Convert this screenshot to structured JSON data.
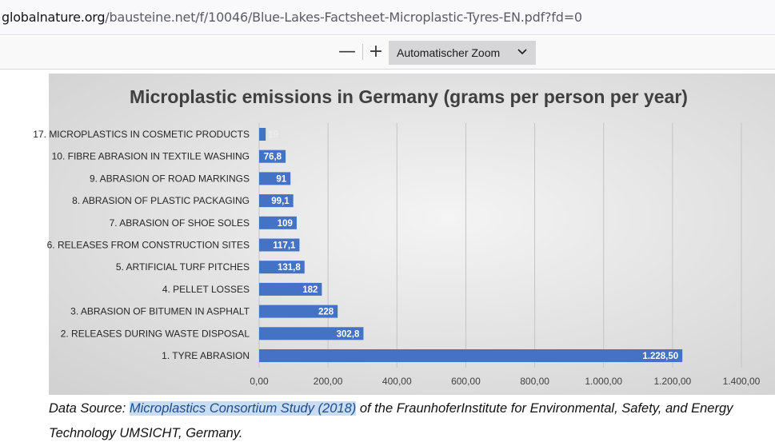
{
  "browser": {
    "url_domain": "globalnature.org",
    "url_path": "/bausteine.net/f/10046/Blue-Lakes-Factsheet-Microplastic-Tyres-EN.pdf?fd=0"
  },
  "pdf_toolbar": {
    "zoom_out_label": "—",
    "zoom_in_label": "+",
    "zoom_value": "Automatischer Zoom"
  },
  "chart_data": {
    "type": "bar",
    "orientation": "horizontal",
    "title": "Microplastic emissions in Germany (grams per person per year)",
    "categories": [
      "17. MICROPLASTICS IN COSMETIC PRODUCTS",
      "10. FIBRE ABRASION IN TEXTILE WASHING",
      "9. ABRASION OF ROAD MARKINGS",
      "8. ABRASION OF PLASTIC PACKAGING",
      "7. ABRASION OF SHOE SOLES",
      "6. RELEASES FROM CONSTRUCTION SITES",
      "5. ARTIFICIAL TURF PITCHES",
      "4. PELLET LOSSES",
      "3. ABRASION OF BITUMEN IN ASPHALT",
      "2. RELEASES DURING WASTE DISPOSAL",
      "1. TYRE ABRASION"
    ],
    "values": [
      19,
      76.8,
      91,
      99.1,
      109,
      117.1,
      131.8,
      182,
      228,
      302.8,
      1228.5
    ],
    "value_labels": [
      "19",
      "76,8",
      "91",
      "99,1",
      "109",
      "117,1",
      "131,8",
      "182",
      "228",
      "302,8",
      "1.228,50"
    ],
    "xlim": [
      0,
      1400
    ],
    "x_ticks": [
      0,
      200,
      400,
      600,
      800,
      1000,
      1200,
      1400
    ],
    "x_tick_labels": [
      "0,00",
      "200,00",
      "400,00",
      "600,00",
      "800,00",
      "1.000,00",
      "1.200,00",
      "1.400,00"
    ],
    "grid": true,
    "bar_color": "#4472c4",
    "background": "#e8e8e8"
  },
  "caption": {
    "prefix": "Data Source: ",
    "link_text": "Microplastics Consortium Study (2018)",
    "suffix": " of the FraunhoferInstitute for Environmental, Safety, and Energy Technology UMSICHT, Germany."
  }
}
